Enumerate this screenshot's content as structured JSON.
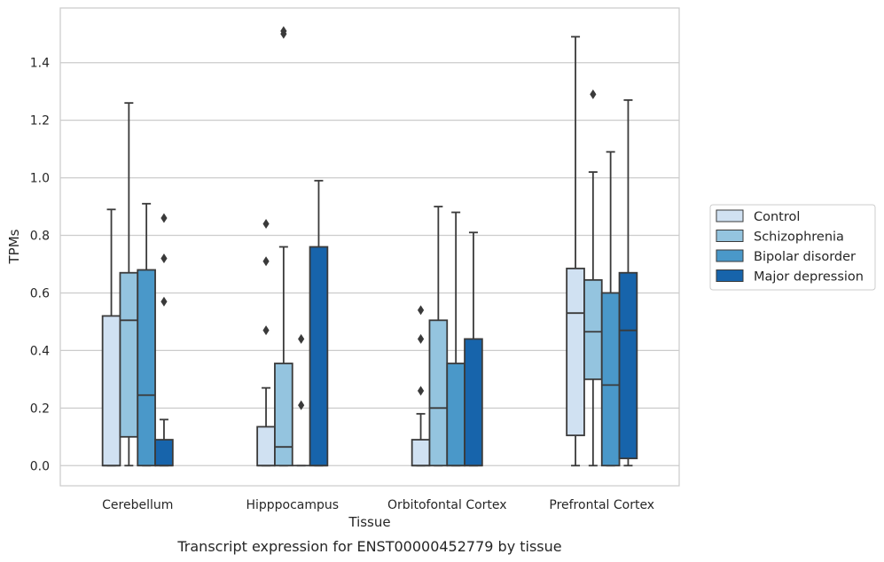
{
  "caption": "Transcript expression for ENST00000452779 by tissue",
  "chart_data": {
    "type": "boxplot",
    "xlabel": "Tissue",
    "ylabel": "TPMs",
    "ylim": [
      -0.07,
      1.59
    ],
    "yticks": [
      "0.0",
      "0.2",
      "0.4",
      "0.6",
      "0.8",
      "1.0",
      "1.2",
      "1.4"
    ],
    "grid": true,
    "legend_position": "right",
    "categories": [
      "Cerebellum",
      "Hipppocampus",
      "Orbitofontal Cortex",
      "Prefrontal Cortex"
    ],
    "series": [
      {
        "name": "Control",
        "color": "#d0e1f2",
        "boxes": [
          {
            "q1": 0.0,
            "median": 0.0,
            "q3": 0.52,
            "whisker_low": 0.0,
            "whisker_high": 0.89,
            "outliers": []
          },
          {
            "q1": 0.0,
            "median": 0.0,
            "q3": 0.135,
            "whisker_low": 0.0,
            "whisker_high": 0.27,
            "outliers": [
              0.47,
              0.71,
              0.84
            ]
          },
          {
            "q1": 0.0,
            "median": 0.0,
            "q3": 0.09,
            "whisker_low": 0.0,
            "whisker_high": 0.18,
            "outliers": [
              0.26,
              0.44,
              0.54
            ]
          },
          {
            "q1": 0.105,
            "median": 0.53,
            "q3": 0.685,
            "whisker_low": 0.0,
            "whisker_high": 1.49,
            "outliers": []
          }
        ]
      },
      {
        "name": "Schizophrenia",
        "color": "#94c4df",
        "boxes": [
          {
            "q1": 0.1,
            "median": 0.505,
            "q3": 0.67,
            "whisker_low": 0.0,
            "whisker_high": 1.26,
            "outliers": []
          },
          {
            "q1": 0.0,
            "median": 0.065,
            "q3": 0.355,
            "whisker_low": 0.0,
            "whisker_high": 0.76,
            "outliers": [
              1.5,
              1.51
            ]
          },
          {
            "q1": 0.0,
            "median": 0.2,
            "q3": 0.505,
            "whisker_low": 0.0,
            "whisker_high": 0.9,
            "outliers": []
          },
          {
            "q1": 0.3,
            "median": 0.465,
            "q3": 0.645,
            "whisker_low": 0.0,
            "whisker_high": 1.02,
            "outliers": [
              1.29
            ]
          }
        ]
      },
      {
        "name": "Bipolar disorder",
        "color": "#4a98c9",
        "boxes": [
          {
            "q1": 0.0,
            "median": 0.245,
            "q3": 0.68,
            "whisker_low": 0.0,
            "whisker_high": 0.91,
            "outliers": []
          },
          {
            "q1": 0.0,
            "median": 0.0,
            "q3": 0.0,
            "whisker_low": 0.0,
            "whisker_high": 0.0,
            "outliers": [
              0.21,
              0.44
            ]
          },
          {
            "q1": 0.0,
            "median": 0.0,
            "q3": 0.355,
            "whisker_low": 0.0,
            "whisker_high": 0.88,
            "outliers": []
          },
          {
            "q1": 0.0,
            "median": 0.28,
            "q3": 0.6,
            "whisker_low": 0.0,
            "whisker_high": 1.09,
            "outliers": []
          }
        ]
      },
      {
        "name": "Major depression",
        "color": "#1764ab",
        "boxes": [
          {
            "q1": 0.0,
            "median": 0.0,
            "q3": 0.09,
            "whisker_low": 0.0,
            "whisker_high": 0.16,
            "outliers": [
              0.57,
              0.72,
              0.86
            ]
          },
          {
            "q1": 0.0,
            "median": 0.0,
            "q3": 0.76,
            "whisker_low": 0.0,
            "whisker_high": 0.99,
            "outliers": []
          },
          {
            "q1": 0.0,
            "median": 0.0,
            "q3": 0.44,
            "whisker_low": 0.0,
            "whisker_high": 0.81,
            "outliers": []
          },
          {
            "q1": 0.025,
            "median": 0.47,
            "q3": 0.67,
            "whisker_low": 0.0,
            "whisker_high": 1.27,
            "outliers": []
          }
        ]
      }
    ]
  }
}
